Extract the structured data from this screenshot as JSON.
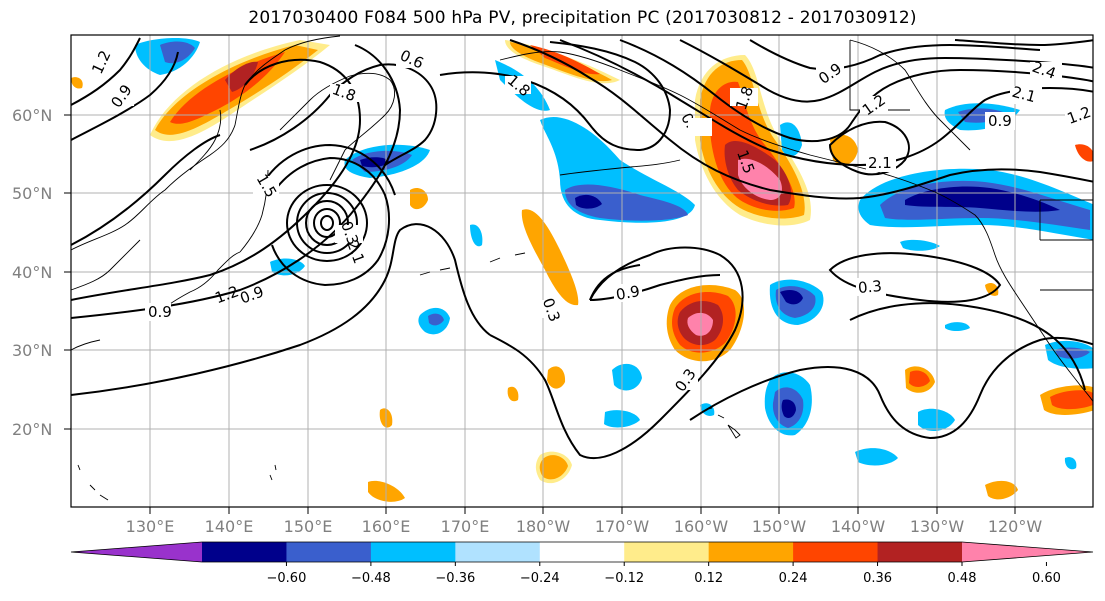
{
  "title": "2017030400 F084 500 hPa PV, precipitation PC (2017030812 - 2017030912)",
  "lat_labels": [
    "60°N",
    "50°N",
    "40°N",
    "30°N",
    "20°N"
  ],
  "lon_labels": [
    "130°E",
    "140°E",
    "150°E",
    "160°E",
    "170°E",
    "180°W",
    "170°W",
    "160°W",
    "150°W",
    "140°W",
    "130°W",
    "120°W"
  ],
  "colorbar": {
    "colors": [
      "#9932cc",
      "#00008b",
      "#3a5fcd",
      "#00bfff",
      "#b0e2ff",
      "#ffffff",
      "#ffec8b",
      "#ffa500",
      "#ff4500",
      "#b22222",
      "#ff82ab"
    ],
    "tick_labels": [
      "−0.60",
      "−0.48",
      "−0.36",
      "−0.24",
      "−0.12",
      "0.12",
      "0.24",
      "0.36",
      "0.48",
      "0.60"
    ]
  },
  "contour_labels": [
    "1.2",
    "0.9",
    "0.9",
    "0.6",
    "1.8",
    "1.5",
    "0.3",
    "0.3",
    "1.8",
    "0.9",
    "1.2",
    "2.1",
    "1.8",
    "2.4",
    "2.1",
    "0.9",
    "1.2",
    "0.9",
    "0.3",
    "0.3",
    "0.3",
    "0.9",
    "1.5",
    "1.2",
    "2.1"
  ],
  "colors": {
    "grid": "#b0b0b0",
    "contour": "#000000",
    "axis_text": "#808080"
  }
}
